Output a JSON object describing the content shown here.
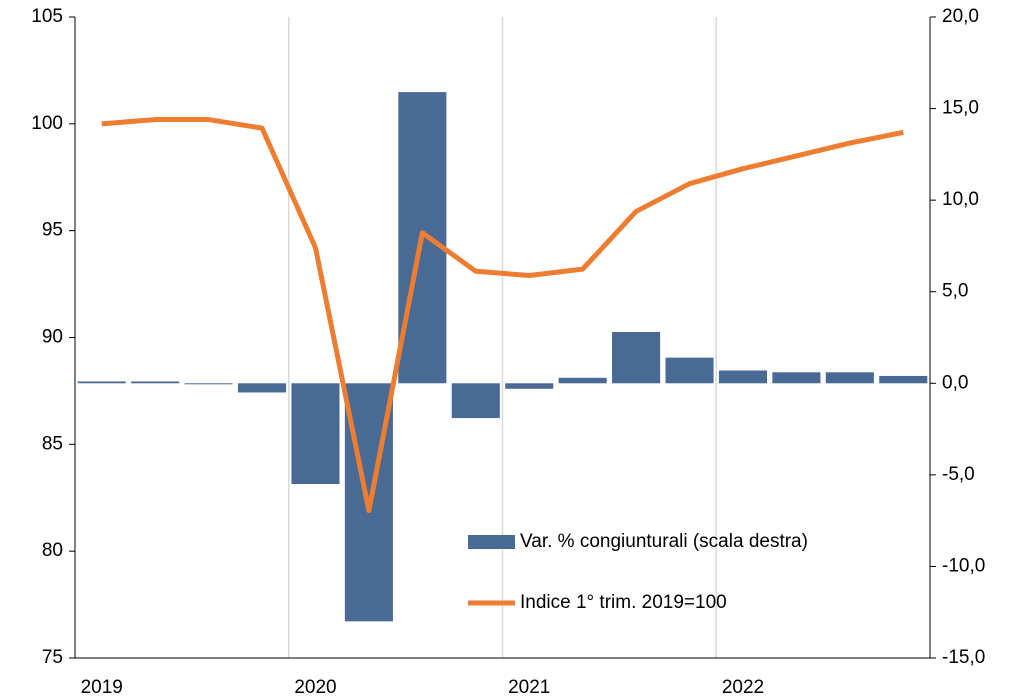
{
  "chart_data": {
    "type": "bar_line",
    "categories": [
      "2019",
      null,
      null,
      null,
      "2020",
      null,
      null,
      null,
      "2021",
      null,
      null,
      null,
      "2022",
      null,
      null,
      null
    ],
    "series": [
      {
        "name": "Var. % congiunturali (scala destra)",
        "type": "bar",
        "axis": "y2",
        "color": "#4a6a96",
        "values": [
          0.1,
          0.1,
          0.0,
          -0.5,
          -5.5,
          -13.0,
          15.9,
          -1.9,
          -0.3,
          0.3,
          2.8,
          1.4,
          0.7,
          0.6,
          0.6,
          0.4
        ]
      },
      {
        "name": "Indice 1° trim. 2019=100",
        "type": "line",
        "axis": "y",
        "color": "#ed7d31",
        "values": [
          100.0,
          100.2,
          100.2,
          99.8,
          94.2,
          81.9,
          94.9,
          93.1,
          92.9,
          93.2,
          95.9,
          97.2,
          97.9,
          98.5,
          99.1,
          99.6
        ]
      }
    ],
    "ylim": [
      75,
      105
    ],
    "yticks": [
      75,
      80,
      85,
      90,
      95,
      100,
      105
    ],
    "y2lim": [
      -15,
      20
    ],
    "y2ticks": [
      {
        "value": -15,
        "label": "-15,0"
      },
      {
        "value": -10,
        "label": "-10,0"
      },
      {
        "value": -5,
        "label": "-5,0"
      },
      {
        "value": 0,
        "label": "0,0"
      },
      {
        "value": 5,
        "label": "5,0"
      },
      {
        "value": 10,
        "label": "10,0"
      },
      {
        "value": 15,
        "label": "15,0"
      },
      {
        "value": 20,
        "label": "20,0"
      }
    ],
    "xgrid": true,
    "legend": "lower right"
  }
}
